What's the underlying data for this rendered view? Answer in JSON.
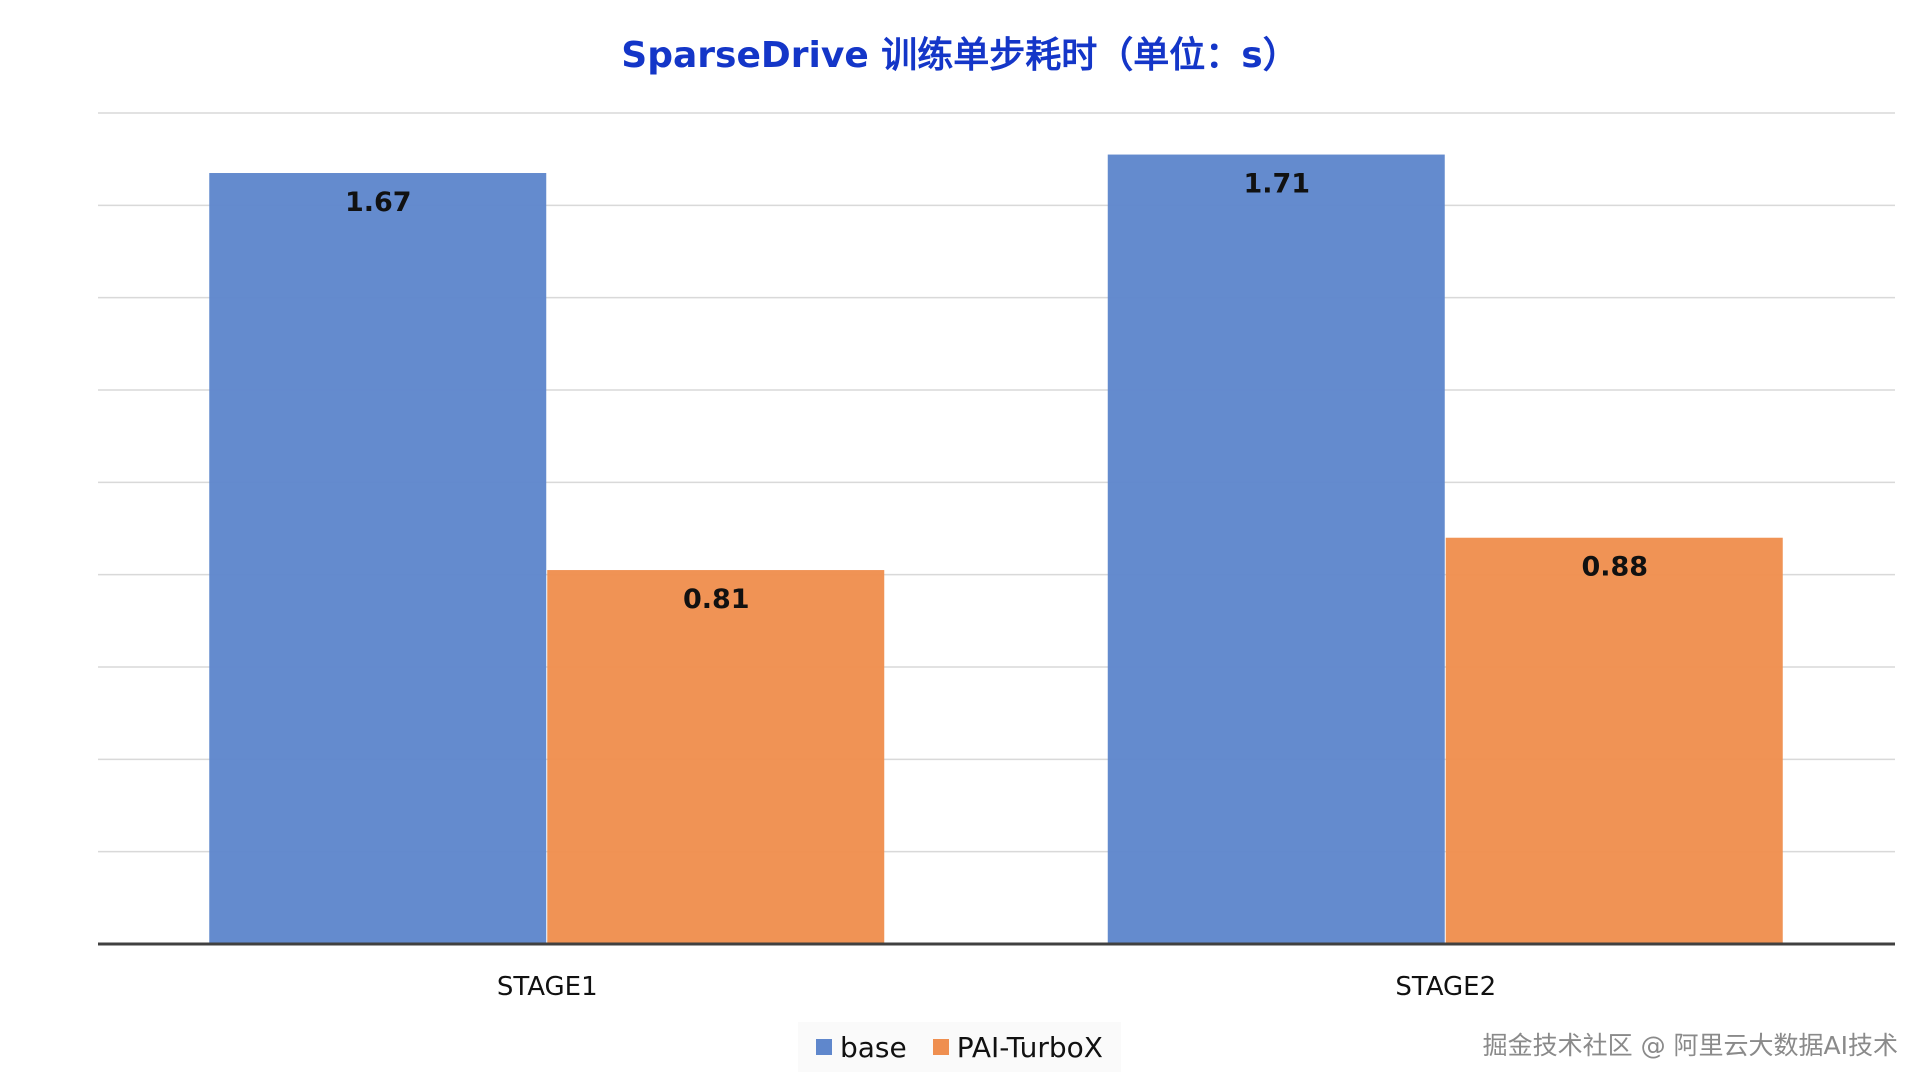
{
  "chart_data": {
    "type": "bar",
    "title": "SparseDrive 训练单步耗时（单位：s）",
    "categories": [
      "STAGE1",
      "STAGE2"
    ],
    "series": [
      {
        "name": "base",
        "values": [
          1.67,
          1.71
        ],
        "color": "#5f87cc"
      },
      {
        "name": "PAI-TurboX",
        "values": [
          0.81,
          0.88
        ],
        "color": "#ef8f50"
      }
    ],
    "xlabel": "",
    "ylabel": "",
    "ylim": [
      0,
      1.8
    ],
    "ytick_step": 0.2,
    "grid": true,
    "y_tick_labels_shown": false,
    "legend_position": "bottom-center"
  },
  "watermark": "掘金技术社区 @ 阿里云大数据AI技术",
  "colors": {
    "title": "#1436c8",
    "grid": "#d9d9d9",
    "axis": "#404040"
  }
}
